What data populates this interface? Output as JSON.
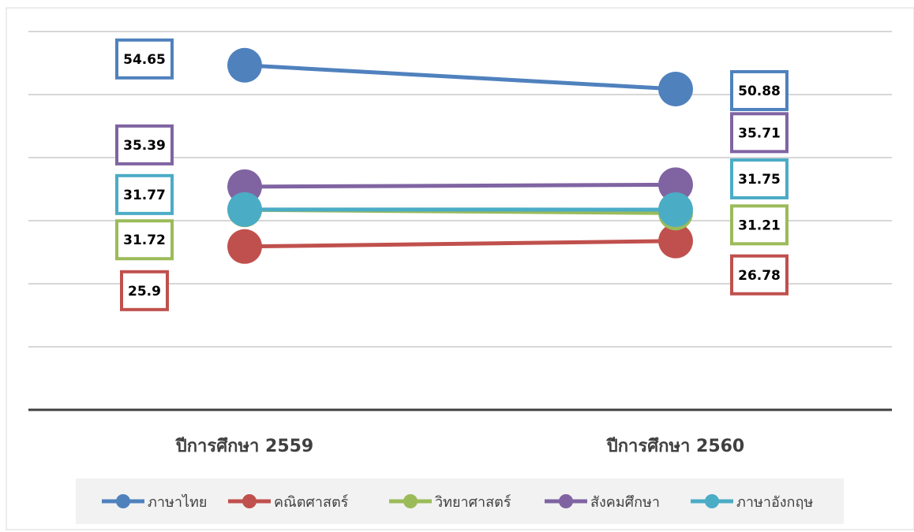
{
  "chart_data": {
    "type": "line",
    "categories": [
      "ปีการศึกษา 2559",
      "ปีการศึกษา 2560"
    ],
    "ylim": [
      0,
      60
    ],
    "grid": true,
    "legend_position": "bottom",
    "series": [
      {
        "name": "ภาษาไทย",
        "values": [
          54.65,
          50.88
        ],
        "color": "#4f81bd"
      },
      {
        "name": "คณิตศาสตร์",
        "values": [
          25.9,
          26.78
        ],
        "color": "#c0504d"
      },
      {
        "name": "วิทยาศาสตร์",
        "values": [
          31.72,
          31.21
        ],
        "color": "#9bbb59"
      },
      {
        "name": "สังคมศึกษา",
        "values": [
          35.39,
          35.71
        ],
        "color": "#8064a2"
      },
      {
        "name": "ภาษาอังกฤษ",
        "values": [
          31.77,
          31.75
        ],
        "color": "#4bacc6"
      }
    ]
  }
}
